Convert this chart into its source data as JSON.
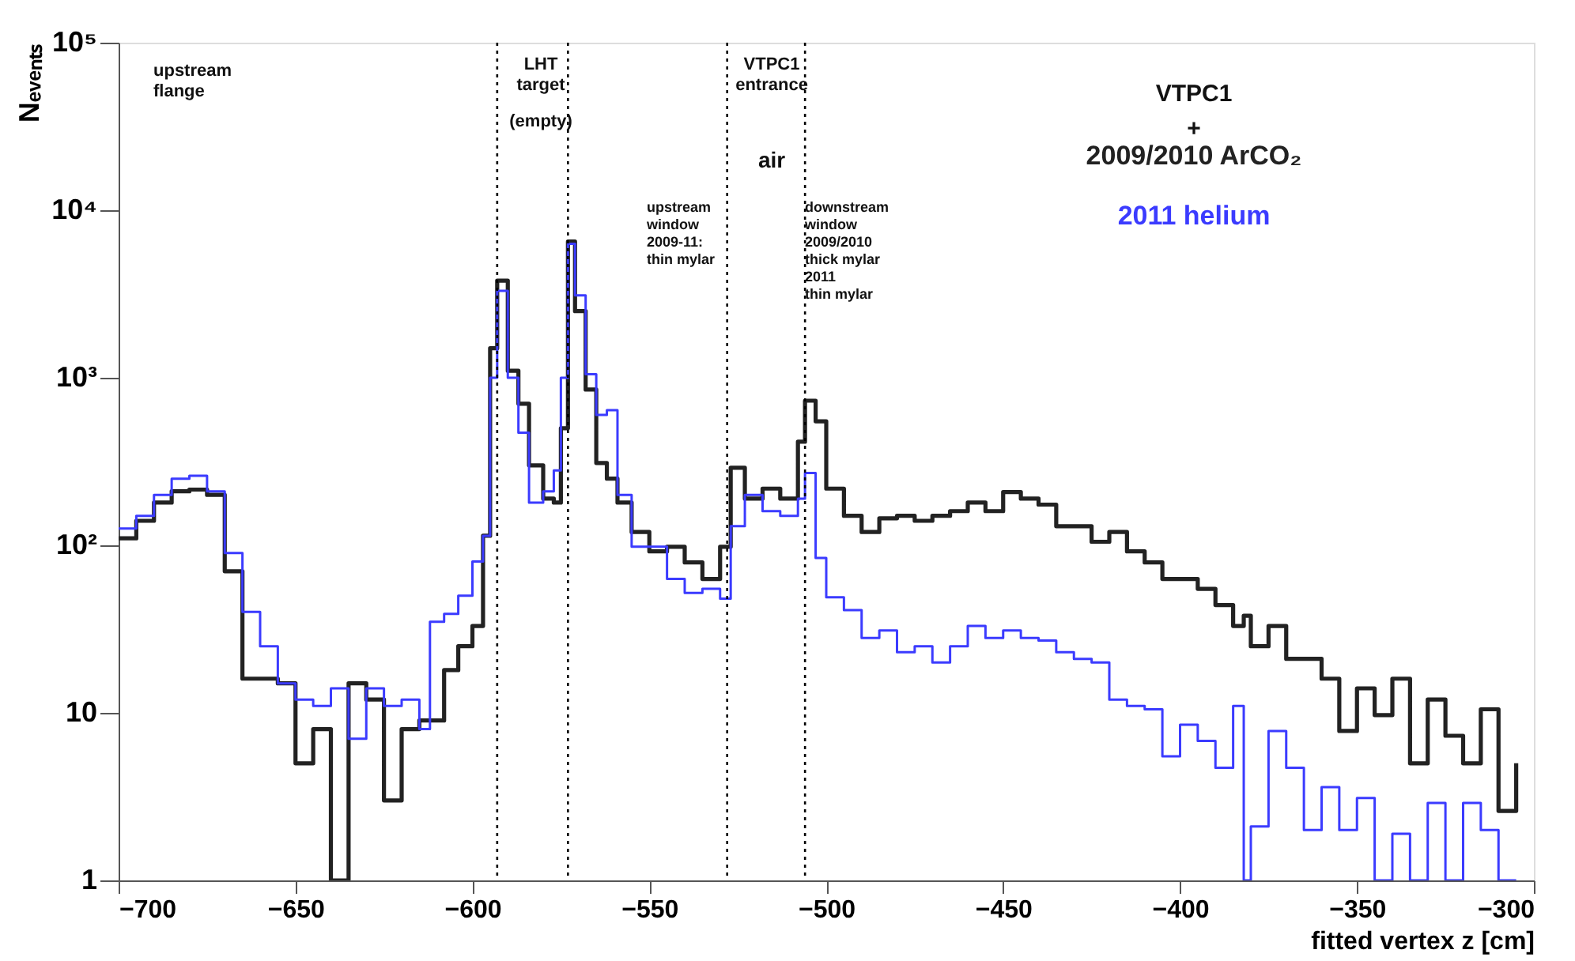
{
  "chart_data": {
    "type": "step",
    "xlabel": "fitted vertex z [cm]",
    "ylabel": "Nₑᵥₑₙₜₛ",
    "log": true,
    "xlim": [
      -700,
      -300
    ],
    "xticks": [
      -700,
      -650,
      -600,
      -550,
      -500,
      -450,
      -400,
      -350,
      -300
    ],
    "ylim": [
      1,
      100000
    ],
    "yticks": [
      {
        "value": 1,
        "label": "1"
      },
      {
        "value": 10,
        "label": "10"
      },
      {
        "value": 100,
        "label": "10²"
      },
      {
        "value": 1000,
        "label": "10³"
      },
      {
        "value": 10000,
        "label": "10⁴"
      },
      {
        "value": 100000,
        "label": "10⁵"
      }
    ],
    "x": [
      -700,
      -695,
      -690,
      -685,
      -680,
      -675,
      -670,
      -665,
      -660,
      -655,
      -650,
      -645,
      -640,
      -635,
      -630,
      -625,
      -620,
      -615,
      -612,
      -608,
      -604,
      -600,
      -597,
      -595,
      -593,
      -590,
      -587,
      -584,
      -580,
      -577,
      -575,
      -573,
      -571,
      -568,
      -565,
      -562,
      -559,
      -555,
      -550,
      -545,
      -540,
      -535,
      -530,
      -527,
      -523,
      -518,
      -513,
      -508,
      -506,
      -503,
      -500,
      -495,
      -490,
      -485,
      -480,
      -475,
      -470,
      -465,
      -460,
      -455,
      -450,
      -445,
      -440,
      -435,
      -430,
      -425,
      -420,
      -415,
      -410,
      -405,
      -400,
      -395,
      -390,
      -385,
      -382,
      -380,
      -375,
      -370,
      -365,
      -360,
      -355,
      -350,
      -345,
      -340,
      -335,
      -330,
      -325,
      -320,
      -315,
      -310,
      -305
    ],
    "series": [
      {
        "name": "2009/2010 ArCO₂",
        "color": "#222222",
        "values": [
          110,
          140,
          180,
          210,
          215,
          200,
          70,
          16,
          16,
          15,
          5,
          8,
          1,
          15,
          12,
          3,
          8,
          9,
          9,
          18,
          25,
          33,
          114,
          1500,
          3800,
          1100,
          700,
          300,
          190,
          180,
          500,
          6500,
          2500,
          850,
          310,
          250,
          180,
          120,
          92,
          98,
          79,
          63,
          98,
          290,
          190,
          218,
          190,
          415,
          730,
          550,
          218,
          150,
          120,
          145,
          150,
          140,
          150,
          160,
          180,
          160,
          208,
          190,
          175,
          130,
          130,
          105,
          120,
          92,
          79,
          63,
          63,
          55,
          44,
          33,
          38,
          25,
          33,
          21,
          21,
          16,
          7.8,
          14,
          9.7,
          16,
          5,
          12,
          7.3,
          5,
          10.5,
          2.6,
          5
        ]
      },
      {
        "name": "2011 helium",
        "color": "#3b3bff",
        "values": [
          126,
          150,
          200,
          250,
          260,
          210,
          90,
          40,
          25,
          15,
          12,
          11,
          14,
          7,
          14,
          11,
          12,
          8,
          35,
          39,
          50,
          80,
          114,
          1000,
          3300,
          1000,
          470,
          180,
          210,
          280,
          1000,
          6300,
          3100,
          1050,
          600,
          640,
          200,
          98,
          98,
          63,
          52,
          55,
          48,
          130,
          200,
          160,
          150,
          190,
          270,
          84,
          49,
          41,
          28,
          31,
          23,
          25,
          20,
          25,
          33,
          28,
          31,
          28,
          27,
          23,
          21,
          20,
          12,
          11,
          10.5,
          5.5,
          8.5,
          6.8,
          4.7,
          11,
          1,
          2.1,
          7.8,
          4.7,
          2,
          3.6,
          2,
          3.1,
          1,
          1.9,
          1,
          2.9,
          1,
          2.9,
          2,
          1,
          1
        ]
      }
    ],
    "ref_lines": [
      {
        "axis": "x",
        "value": -593,
        "line_style": "dotted"
      },
      {
        "axis": "x",
        "value": -573,
        "line_style": "dotted"
      },
      {
        "axis": "x",
        "value": -528,
        "line_style": "dotted"
      },
      {
        "axis": "x",
        "value": -506,
        "line_style": "dotted"
      }
    ],
    "annotations": [
      "upstream\nflange",
      "LHT\ntarget",
      "(empty)",
      "VTPC1\nentrance",
      "air",
      "upstream\nwindow\n2009-11:\nthin mylar",
      "downstream\nwindow\n2009/2010\nthick mylar\n2011\nthin mylar",
      "VTPC1",
      "+"
    ]
  }
}
